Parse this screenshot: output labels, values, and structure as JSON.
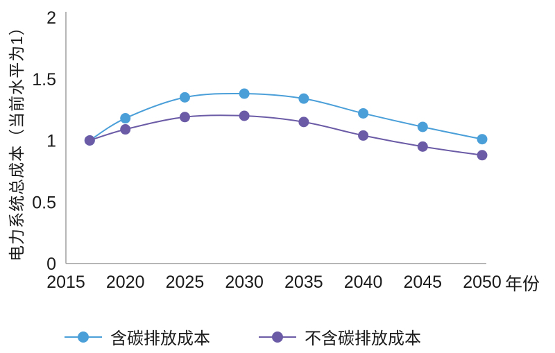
{
  "chart_data": {
    "type": "line",
    "title": "",
    "xlabel": "年份",
    "ylabel": "电力系统总成本（当前水平为1）",
    "x": [
      2017,
      2020,
      2025,
      2030,
      2035,
      2040,
      2045,
      2050
    ],
    "series": [
      {
        "name": "含碳排放成本",
        "color": "#4a9fd9",
        "values": [
          1.0,
          1.18,
          1.35,
          1.38,
          1.34,
          1.22,
          1.11,
          1.01
        ]
      },
      {
        "name": "不含碳排放成本",
        "color": "#6b5ba6",
        "values": [
          1.0,
          1.09,
          1.19,
          1.2,
          1.15,
          1.04,
          0.95,
          0.88
        ]
      }
    ],
    "xticks": [
      2015,
      2020,
      2025,
      2030,
      2035,
      2040,
      2045,
      2050
    ],
    "yticks": [
      0,
      0.5,
      1,
      1.5,
      2
    ],
    "xlim": [
      2015,
      2050
    ],
    "ylim": [
      0,
      2
    ],
    "grid": false,
    "legend_position": "bottom",
    "colors": {
      "axis": "#9e9e9e",
      "text": "#1a1a1a",
      "background": "#ffffff"
    }
  }
}
